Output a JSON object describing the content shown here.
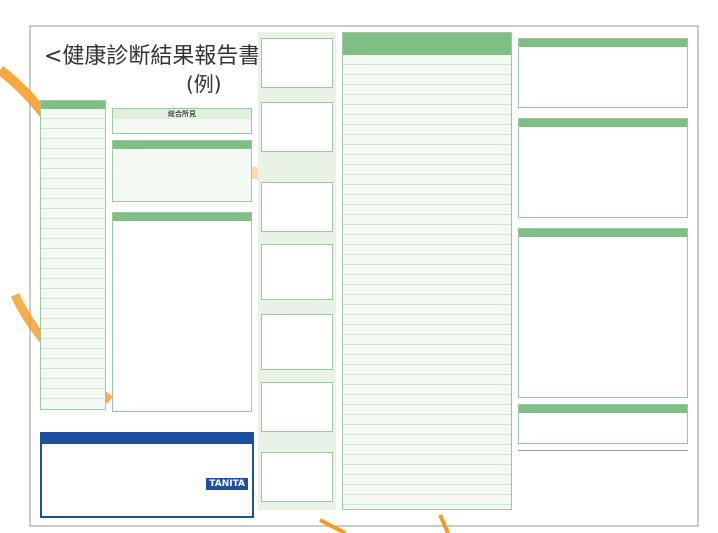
{
  "header": {
    "title": "<健康診断結果報告書>",
    "subtitle": "(例)"
  },
  "left_panel": {
    "summary_header": "総合所見"
  },
  "advice_box": {
    "brand": "TANITA"
  }
}
